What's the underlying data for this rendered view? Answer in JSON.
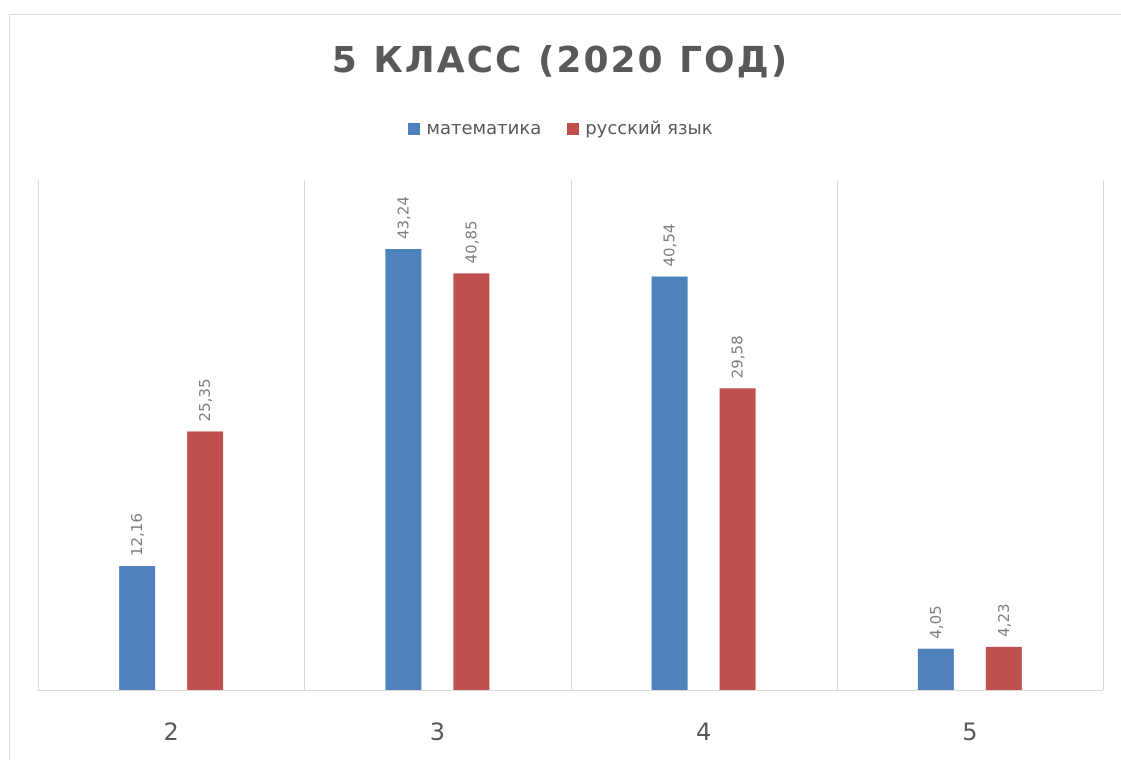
{
  "chart_data": {
    "type": "bar",
    "title": "5 КЛАСС (2020 ГОД)",
    "xlabel": "",
    "ylabel": "",
    "categories": [
      "2",
      "3",
      "4",
      "5"
    ],
    "series": [
      {
        "name": "математика",
        "color": "#4f81bd",
        "values": [
          12.16,
          43.24,
          40.54,
          4.05
        ],
        "labels": [
          "12,16",
          "43,24",
          "40,54",
          "4,05"
        ]
      },
      {
        "name": "русский язык",
        "color": "#c0504d",
        "values": [
          25.35,
          40.85,
          29.58,
          4.23
        ],
        "labels": [
          "25,35",
          "40,85",
          "29,58",
          "4,23"
        ]
      }
    ],
    "ylim": [
      0,
      45
    ],
    "grid": "vertical category separators",
    "legend_position": "top"
  }
}
